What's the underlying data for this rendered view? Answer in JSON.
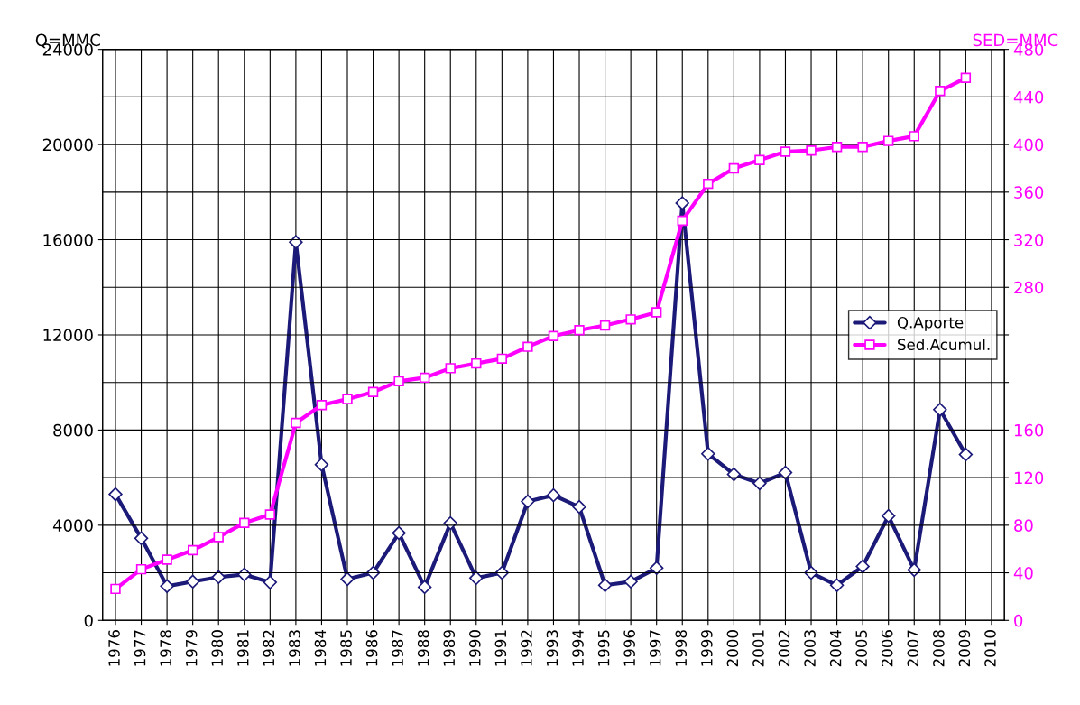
{
  "chart_data": {
    "type": "line",
    "ylabel": "Q=MMC",
    "y2label": "SED=MMC",
    "categories": [
      "1976",
      "1977",
      "1978",
      "1979",
      "1980",
      "1981",
      "1982",
      "1983",
      "1984",
      "1985",
      "1986",
      "1987",
      "1988",
      "1989",
      "1990",
      "1991",
      "1992",
      "1993",
      "1994",
      "1995",
      "1996",
      "1997",
      "1998",
      "1999",
      "2000",
      "2001",
      "2002",
      "2003",
      "2004",
      "2005",
      "2006",
      "2007",
      "2008",
      "2009",
      "2010"
    ],
    "series": [
      {
        "name": "Q.Aporte",
        "color": "#1c1a78",
        "marker": "diamond",
        "values": [
          5300,
          3450,
          1440,
          1630,
          1820,
          1930,
          1600,
          15900,
          6550,
          1740,
          2000,
          3670,
          1400,
          4090,
          1780,
          2000,
          5000,
          5260,
          4770,
          1480,
          1630,
          2200,
          17540,
          7000,
          6140,
          5760,
          6210,
          2000,
          1480,
          2270,
          4390,
          2120,
          8860,
          6970,
          null
        ]
      },
      {
        "name": "Sed.Acumul.",
        "color": "#ff00ff",
        "marker": "square",
        "axis": "y2",
        "values": [
          26.5,
          43,
          51,
          59,
          70,
          82,
          89,
          166,
          181,
          186,
          192,
          201,
          204,
          212,
          216,
          220,
          230,
          239,
          244,
          248,
          253,
          259,
          336,
          367,
          380,
          387,
          394,
          395,
          398,
          398,
          403,
          407,
          445,
          456,
          null
        ]
      }
    ],
    "ylim": [
      0,
      24000
    ],
    "yticks": [
      0,
      4000,
      8000,
      12000,
      16000,
      20000,
      24000
    ],
    "y2lim": [
      0,
      480
    ],
    "y2ticks": [
      0,
      40,
      80,
      120,
      160,
      {
        "value": 200,
        "label": null
      },
      {
        "value": 240,
        "label": null
      },
      280,
      320,
      360,
      400,
      440,
      480
    ],
    "grid": true,
    "legend": "right",
    "line_style": "solid"
  }
}
